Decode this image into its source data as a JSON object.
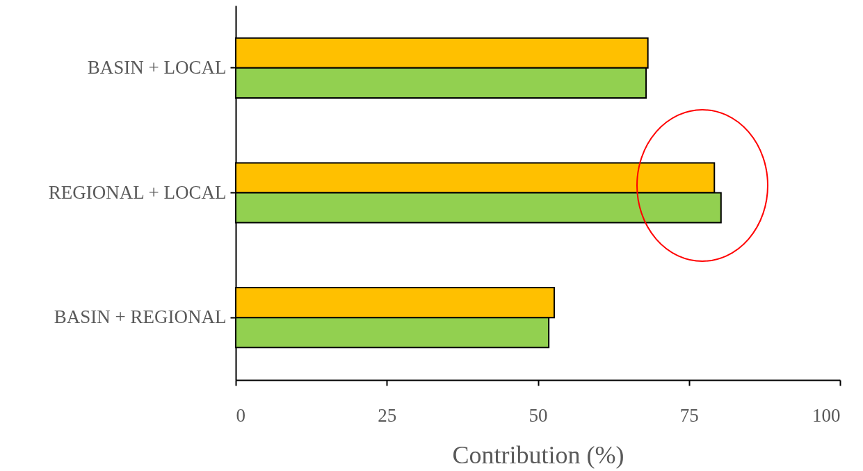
{
  "chart_data": {
    "type": "bar",
    "orientation": "horizontal",
    "xlabel": "Contribution (%)",
    "categories": [
      "BASIN + LOCAL",
      "REGIONAL + LOCAL",
      "BASIN + REGIONAL"
    ],
    "series": [
      {
        "color": "#ffc000",
        "values": [
          68.2,
          79.2,
          52.7
        ]
      },
      {
        "color": "#92d050",
        "values": [
          67.9,
          80.3,
          51.8
        ]
      }
    ],
    "xlim": [
      0,
      100
    ],
    "xticks": [
      0,
      25,
      50,
      75,
      100
    ],
    "grid": false
  }
}
